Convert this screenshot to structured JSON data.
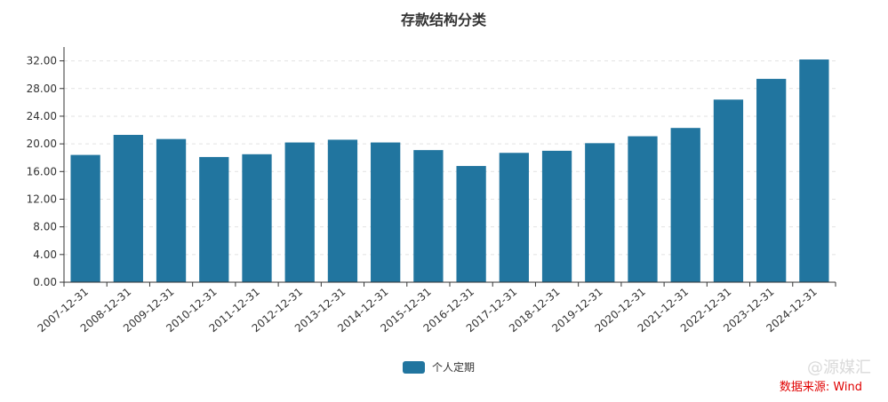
{
  "chart_data": {
    "type": "bar",
    "title": "存款结构分类",
    "categories": [
      "2007-12-31",
      "2008-12-31",
      "2009-12-31",
      "2010-12-31",
      "2011-12-31",
      "2012-12-31",
      "2013-12-31",
      "2014-12-31",
      "2015-12-31",
      "2016-12-31",
      "2017-12-31",
      "2018-12-31",
      "2019-12-31",
      "2020-12-31",
      "2021-12-31",
      "2022-12-31",
      "2023-12-31",
      "2024-12-31"
    ],
    "series": [
      {
        "name": "个人定期",
        "color": "#21759f",
        "values": [
          18.4,
          21.3,
          20.7,
          18.1,
          18.5,
          20.2,
          20.6,
          20.2,
          19.1,
          16.8,
          18.7,
          19.0,
          20.1,
          21.1,
          22.3,
          26.4,
          29.4,
          32.2
        ]
      }
    ],
    "yticks": [
      "0.00",
      "4.00",
      "8.00",
      "12.00",
      "16.00",
      "20.00",
      "24.00",
      "28.00",
      "32.00"
    ],
    "ylim": [
      0,
      34
    ],
    "grid": "horizontal-dashed",
    "legend_position": "bottom-center"
  },
  "source_note": "数据来源: Wind",
  "watermark": "@源媒汇"
}
